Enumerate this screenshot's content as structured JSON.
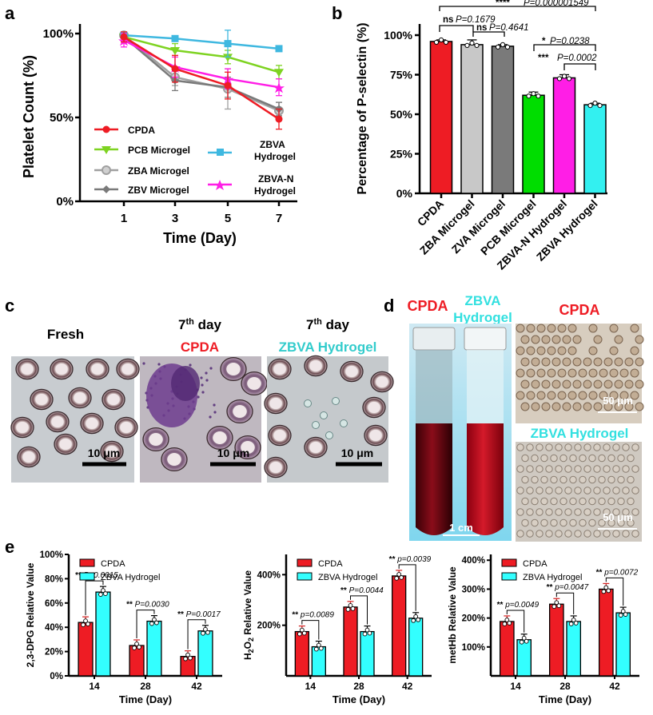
{
  "panel_labels": {
    "a": "a",
    "b": "b",
    "c": "c",
    "d": "d",
    "e": "e"
  },
  "colors": {
    "cpda": "#ee1c24",
    "pcb": "#7ed321",
    "zba": "#a0a0a0",
    "zbv": "#7a7a7a",
    "zbva": "#3fb8e0",
    "zbvan": "#ff1ee6",
    "pcb_bar": "#00dd00",
    "zbva_bar": "#33f0f0",
    "light_cyan": "#33ffff"
  },
  "chart_data": [
    {
      "id": "a",
      "type": "line",
      "xlabel": "Time (Day)",
      "ylabel": "Platelet Count (%)",
      "x": [
        1,
        3,
        5,
        7
      ],
      "xticks": [
        "1",
        "3",
        "5",
        "7"
      ],
      "yticks": [
        "0%",
        "50%",
        "100%"
      ],
      "ylim": [
        0,
        100
      ],
      "series": [
        {
          "name": "CPDA",
          "values": [
            98,
            79,
            69,
            49
          ],
          "err": [
            3,
            8,
            8,
            6
          ]
        },
        {
          "name": "PCB Microgel",
          "values": [
            98,
            90,
            86,
            77
          ],
          "err": [
            2,
            4,
            4,
            4
          ]
        },
        {
          "name": "ZBA Microgel",
          "values": [
            99,
            74,
            67,
            54
          ],
          "err": [
            1,
            5,
            12,
            5
          ]
        },
        {
          "name": "ZBV Microgel",
          "values": [
            98,
            72,
            68,
            55
          ],
          "err": [
            2,
            6,
            6,
            4
          ]
        },
        {
          "name": "ZBVA Hydrogel",
          "values": [
            99,
            97,
            94,
            91
          ],
          "err": [
            1,
            1,
            8,
            1
          ]
        },
        {
          "name": "ZBVA-N Hydrogel",
          "values": [
            96,
            80,
            73,
            68
          ],
          "err": [
            4,
            6,
            6,
            5
          ]
        }
      ],
      "legend": {
        "cpda": "CPDA",
        "pcb": "PCB Microgel",
        "zba": "ZBA Microgel",
        "zbv": "ZBV Microgel",
        "zbva1": "ZBVA",
        "zbva2": "Hydrogel",
        "zbvan1": "ZBVA-N",
        "zbvan2": "Hydrogel"
      }
    },
    {
      "id": "b",
      "type": "bar",
      "ylabel": "Percentage of P-selectin (%)",
      "categories": [
        "CPDA",
        "ZBA Microgel",
        "ZVA Microgel",
        "PCB Microgel",
        "ZBVA-N Hydrogel",
        "ZBVA Hydrogel"
      ],
      "values": [
        96,
        94,
        93,
        62,
        73,
        56
      ],
      "err": [
        1,
        3,
        1,
        2,
        2,
        1
      ],
      "yticks": [
        "0%",
        "25%",
        "50%",
        "75%",
        "100%"
      ],
      "ylim": [
        0,
        100
      ],
      "annotations": {
        "a1_star": "****",
        "a1_p": "P=0.000001549",
        "a2_star": "ns",
        "a2_p": "P=0.1679",
        "a3_star": "ns",
        "a3_p": "P=0.4641",
        "a4_star": "*",
        "a4_p": "P=0.0238",
        "a5_star": "***",
        "a5_p": "P=0.0002"
      }
    },
    {
      "id": "e1",
      "type": "bar",
      "xlabel": "Time (Day)",
      "ylabel": "2,3-DPG Relative Value",
      "categories": [
        "14",
        "28",
        "42"
      ],
      "series": [
        {
          "name": "CPDA",
          "values": [
            44,
            25,
            16
          ]
        },
        {
          "name": "ZBVA Hydrogel",
          "values": [
            69,
            45,
            37
          ]
        }
      ],
      "yticks": [
        "0%",
        "20%",
        "40%",
        "60%",
        "80%",
        "100%"
      ],
      "ylim": [
        0,
        100
      ],
      "sig": [
        "** P=0.0015",
        "** P=0.0030",
        "** P=0.0017"
      ]
    },
    {
      "id": "e2",
      "type": "bar",
      "xlabel": "Time (Day)",
      "ylabel": "H2O2 Relative Value",
      "categories": [
        "14",
        "28",
        "42"
      ],
      "series": [
        {
          "name": "CPDA",
          "values": [
            175,
            272,
            395
          ]
        },
        {
          "name": "ZBVA Hydrogel",
          "values": [
            115,
            175,
            228
          ]
        }
      ],
      "yticks": [
        "200%",
        "400%"
      ],
      "ylim": [
        0,
        480
      ],
      "sig": [
        "** p=0.0089",
        "** P=0.0044",
        "** p=0.0039"
      ]
    },
    {
      "id": "e3",
      "type": "bar",
      "xlabel": "Time (Day)",
      "ylabel": "metHb Relative Value",
      "categories": [
        "14",
        "28",
        "42"
      ],
      "series": [
        {
          "name": "CPDA",
          "values": [
            188,
            248,
            300
          ]
        },
        {
          "name": "ZBVA Hydrogel",
          "values": [
            125,
            188,
            218
          ]
        }
      ],
      "yticks": [
        "100%",
        "200%",
        "300%",
        "400%"
      ],
      "ylim": [
        0,
        420
      ],
      "sig": [
        "** p=0.0049",
        "** p=0.0047",
        "** p=0.0072"
      ]
    }
  ],
  "panel_c": {
    "col1": "Fresh",
    "col2_top": "7",
    "col2_sup": "th",
    "col2_word": " day",
    "col2_sub": "CPDA",
    "col3_top": "7",
    "col3_sup": "th",
    "col3_word": " day",
    "col3_sub": "ZBVA Hydrogel",
    "scale": "10 μm"
  },
  "panel_d": {
    "cpda": "CPDA",
    "zbva1": "ZBVA",
    "zbva2": "Hydrogel",
    "scale_cm": "1 cm",
    "micro_top": "CPDA",
    "micro_bottom": "ZBVA Hydrogel",
    "scale_um": "50 μm"
  },
  "legend_e": {
    "cpda": "CPDA",
    "zbva": "ZBVA Hydrogel"
  }
}
